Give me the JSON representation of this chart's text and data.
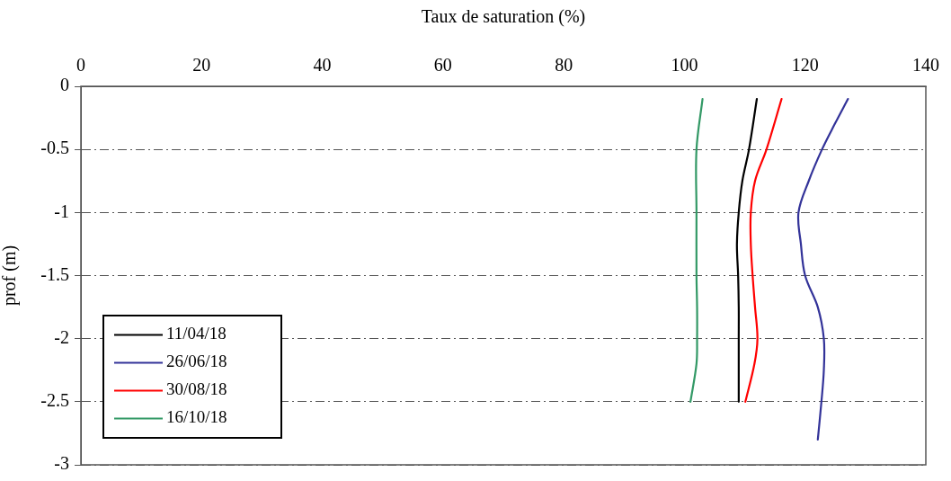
{
  "chart_data": {
    "type": "line",
    "xlabel": "Taux de saturation (%)",
    "ylabel": "prof (m)",
    "xlim": [
      0,
      140
    ],
    "xticks": [
      0,
      20,
      40,
      60,
      80,
      100,
      120,
      140
    ],
    "ylim": [
      -3,
      0
    ],
    "yticks": [
      0,
      -0.5,
      -1,
      -1.5,
      -2,
      -2.5,
      -3
    ],
    "grid": "y",
    "legend": "bottom left",
    "marker": "none",
    "line_style": "solid",
    "series": [
      {
        "name": "11/04/18",
        "color": "#000000",
        "x": [
          112.0,
          110.7,
          109.6,
          109.0,
          108.7,
          108.9,
          109.0,
          109.0,
          109.0
        ],
        "values": [
          -0.1,
          -0.5,
          -0.75,
          -1,
          -1.25,
          -1.5,
          -1.75,
          -2,
          -2.5
        ]
      },
      {
        "name": "26/06/18",
        "color": "#333399",
        "x": [
          127.1,
          124.9,
          122.8,
          120.6,
          118.9,
          119.3,
          120.0,
          122.1,
          123.1,
          123.1,
          122.7,
          122.1
        ],
        "values": [
          -0.1,
          -0.3,
          -0.5,
          -0.75,
          -1,
          -1.25,
          -1.5,
          -1.75,
          -2,
          -2.25,
          -2.5,
          -2.8
        ]
      },
      {
        "name": "30/08/18",
        "color": "#ff0000",
        "x": [
          116.1,
          113.6,
          111.7,
          111.0,
          111.0,
          111.3,
          111.7,
          112.1,
          111.6,
          110.1
        ],
        "values": [
          -0.1,
          -0.5,
          -0.75,
          -1,
          -1.25,
          -1.5,
          -1.75,
          -2,
          -2.2,
          -2.5
        ]
      },
      {
        "name": "16/10/18",
        "color": "#339966",
        "x": [
          103.0,
          102.0,
          102.0,
          102.0,
          102.1,
          102.1,
          102.0,
          101.0
        ],
        "values": [
          -0.1,
          -0.5,
          -1,
          -1.5,
          -1.75,
          -2,
          -2.2,
          -2.5
        ]
      }
    ]
  }
}
